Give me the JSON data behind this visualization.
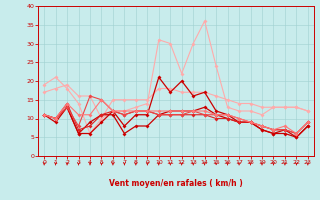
{
  "xlabel": "Vent moyen/en rafales ( km/h )",
  "xlim": [
    -0.5,
    23.5
  ],
  "ylim": [
    0,
    40
  ],
  "yticks": [
    0,
    5,
    10,
    15,
    20,
    25,
    30,
    35,
    40
  ],
  "xticks": [
    0,
    1,
    2,
    3,
    4,
    5,
    6,
    7,
    8,
    9,
    10,
    11,
    12,
    13,
    14,
    15,
    16,
    17,
    18,
    19,
    20,
    21,
    22,
    23
  ],
  "background_color": "#c8ecec",
  "grid_color": "#a0d0d0",
  "axis_color": "#cc0000",
  "series": [
    {
      "y": [
        17,
        18,
        19,
        16,
        16,
        10,
        15,
        15,
        15,
        15,
        18,
        18,
        17,
        17,
        17,
        16,
        15,
        14,
        14,
        13,
        13,
        13,
        13,
        12
      ],
      "color": "#ffaaaa",
      "lw": 0.8,
      "ms": 2.0
    },
    {
      "y": [
        19,
        21,
        18,
        14,
        6,
        10,
        12,
        12,
        13,
        14,
        31,
        30,
        22,
        30,
        36,
        24,
        13,
        12,
        12,
        11,
        13,
        13,
        13,
        12
      ],
      "color": "#ffaaaa",
      "lw": 0.8,
      "ms": 2.0
    },
    {
      "y": [
        11,
        10,
        13,
        6,
        6,
        9,
        12,
        8,
        11,
        11,
        21,
        17,
        20,
        16,
        17,
        12,
        11,
        9,
        9,
        7,
        6,
        7,
        5,
        8
      ],
      "color": "#cc0000",
      "lw": 0.9,
      "ms": 2.0
    },
    {
      "y": [
        11,
        9,
        13,
        6,
        9,
        11,
        11,
        6,
        8,
        8,
        11,
        12,
        12,
        12,
        13,
        11,
        10,
        9,
        9,
        7,
        6,
        6,
        5,
        8
      ],
      "color": "#cc0000",
      "lw": 0.9,
      "ms": 2.0
    },
    {
      "y": [
        11,
        10,
        14,
        7,
        8,
        11,
        12,
        11,
        12,
        12,
        11,
        11,
        11,
        11,
        11,
        10,
        10,
        9,
        9,
        8,
        7,
        7,
        6,
        9
      ],
      "color": "#dd2222",
      "lw": 0.8,
      "ms": 2.0
    },
    {
      "y": [
        11,
        10,
        13,
        8,
        16,
        15,
        12,
        11,
        12,
        12,
        11,
        11,
        11,
        12,
        11,
        11,
        11,
        10,
        9,
        8,
        7,
        7,
        6,
        9
      ],
      "color": "#ee4444",
      "lw": 0.8,
      "ms": 2.0
    },
    {
      "y": [
        11,
        10,
        14,
        11,
        11,
        15,
        12,
        12,
        12,
        12,
        12,
        12,
        12,
        12,
        12,
        11,
        11,
        10,
        9,
        8,
        7,
        8,
        6,
        9
      ],
      "color": "#ff7777",
      "lw": 0.8,
      "ms": 2.0
    }
  ],
  "arrow_color": "#cc0000",
  "xlabel_color": "#cc0000",
  "xlabel_fontsize": 5.5,
  "tick_fontsize": 4.5
}
